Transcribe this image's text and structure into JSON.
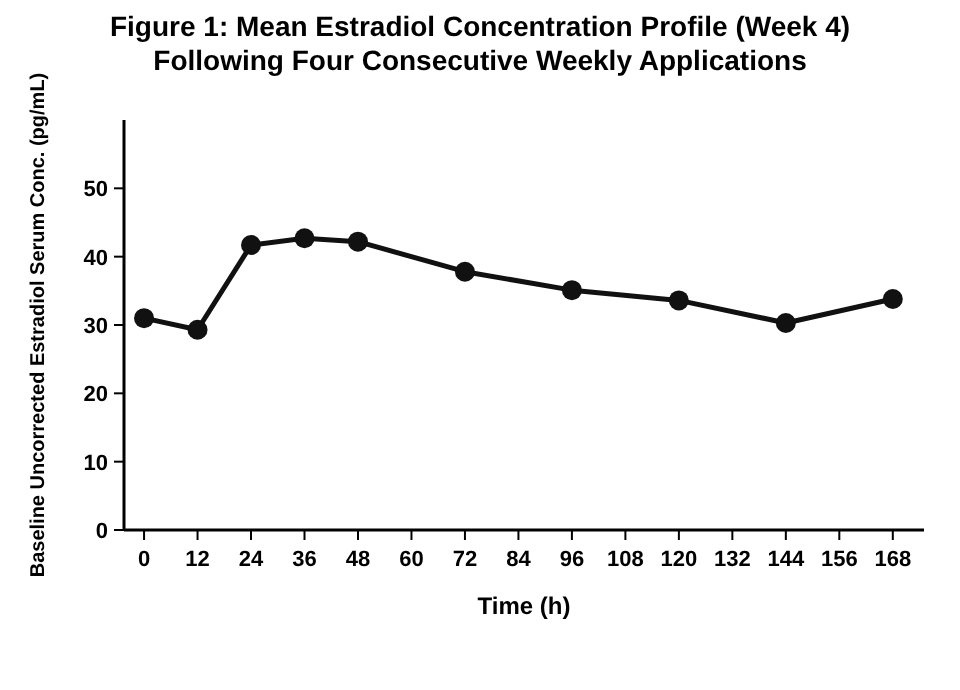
{
  "chart_data": {
    "type": "line",
    "title": "Figure 1: Mean Estradiol Concentration Profile (Week 4) Following Four Consecutive Weekly Applications",
    "xlabel": "Time (h)",
    "ylabel": "Baseline Uncorrected Estradiol Serum Conc. (pg/mL)",
    "x": [
      0,
      12,
      24,
      36,
      48,
      72,
      96,
      120,
      144,
      168
    ],
    "series": [
      {
        "color": "#111111",
        "values": [
          31.0,
          29.3,
          41.7,
          42.7,
          42.2,
          37.8,
          35.1,
          33.6,
          30.3,
          33.8
        ]
      }
    ],
    "xlim": [
      -4.5,
      175
    ],
    "xticks": [
      0,
      12,
      24,
      36,
      48,
      60,
      72,
      84,
      96,
      108,
      120,
      132,
      144,
      156,
      168
    ],
    "ylim": [
      0,
      60
    ],
    "yticks": [
      0,
      10,
      20,
      30,
      40,
      50
    ],
    "marker": "circle",
    "line_style": "solid"
  }
}
